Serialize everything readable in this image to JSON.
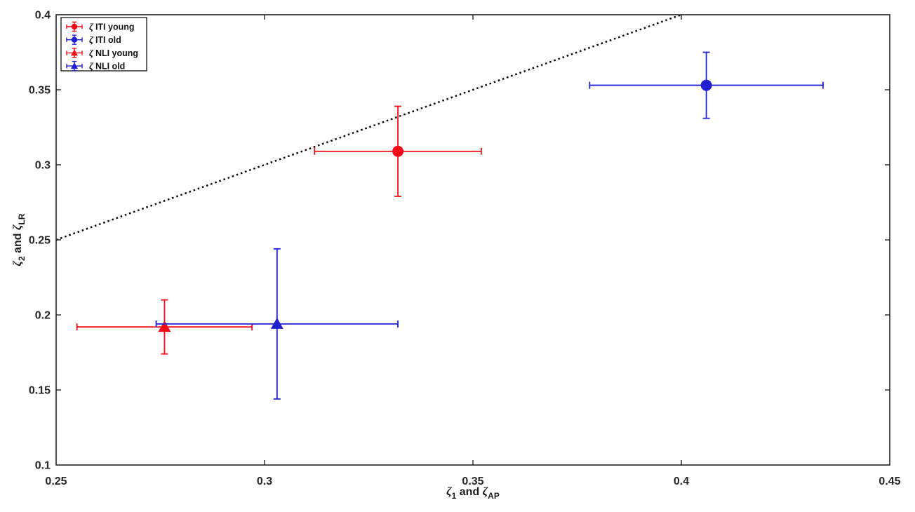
{
  "figure": {
    "background": "#ffffff"
  },
  "chart_data": {
    "type": "scatter",
    "title": "",
    "xlabel_parts": [
      {
        "text": "ζ",
        "style": "zeta"
      },
      {
        "text": "1",
        "style": "sub"
      },
      {
        "text": " and ",
        "style": "normal"
      },
      {
        "text": "ζ",
        "style": "zeta"
      },
      {
        "text": "AP",
        "style": "sub"
      }
    ],
    "ylabel_parts": [
      {
        "text": "ζ",
        "style": "zeta"
      },
      {
        "text": "2",
        "style": "sub"
      },
      {
        "text": " and ",
        "style": "normal"
      },
      {
        "text": "ζ",
        "style": "zeta"
      },
      {
        "text": "LR",
        "style": "sub"
      }
    ],
    "xlim": [
      0.25,
      0.45
    ],
    "ylim": [
      0.1,
      0.4
    ],
    "xtick_values": [
      0.25,
      0.3,
      0.35,
      0.4,
      0.45
    ],
    "xtick_labels": [
      "0.25",
      "0.3",
      "0.35",
      "0.4",
      "0.45"
    ],
    "ytick_values": [
      0.1,
      0.15,
      0.2,
      0.25,
      0.3,
      0.35,
      0.4
    ],
    "ytick_labels": [
      "0.1",
      "0.15",
      "0.2",
      "0.25",
      "0.3",
      "0.35",
      "0.4"
    ],
    "grid": false,
    "box": true,
    "ticks_mirrored": true,
    "axis_color": "#151515",
    "tick_label_color": "#262626",
    "identity_line": {
      "style": "dotted",
      "color": "#000000",
      "from": {
        "x": 0.25,
        "y": 0.25
      },
      "to": {
        "x": 0.4,
        "y": 0.4
      }
    },
    "legend_position": "top-left",
    "series": [
      {
        "name": "ζ ITI young",
        "marker": "circle",
        "color": "#f50b17",
        "x": 0.332,
        "y": 0.309,
        "xerr": 0.02,
        "yerr": 0.03
      },
      {
        "name": "ζ ITI old",
        "marker": "circle",
        "color": "#2020d2",
        "x": 0.406,
        "y": 0.353,
        "xerr": 0.028,
        "yerr": 0.022
      },
      {
        "name": "ζ NLI young",
        "marker": "triangle",
        "color": "#f50b17",
        "x": 0.276,
        "y": 0.192,
        "xerr": 0.021,
        "yerr": 0.018
      },
      {
        "name": "ζ NLI old",
        "marker": "triangle",
        "color": "#2020d2",
        "x": 0.303,
        "y": 0.194,
        "xerr": 0.029,
        "yerr": 0.05
      }
    ]
  }
}
